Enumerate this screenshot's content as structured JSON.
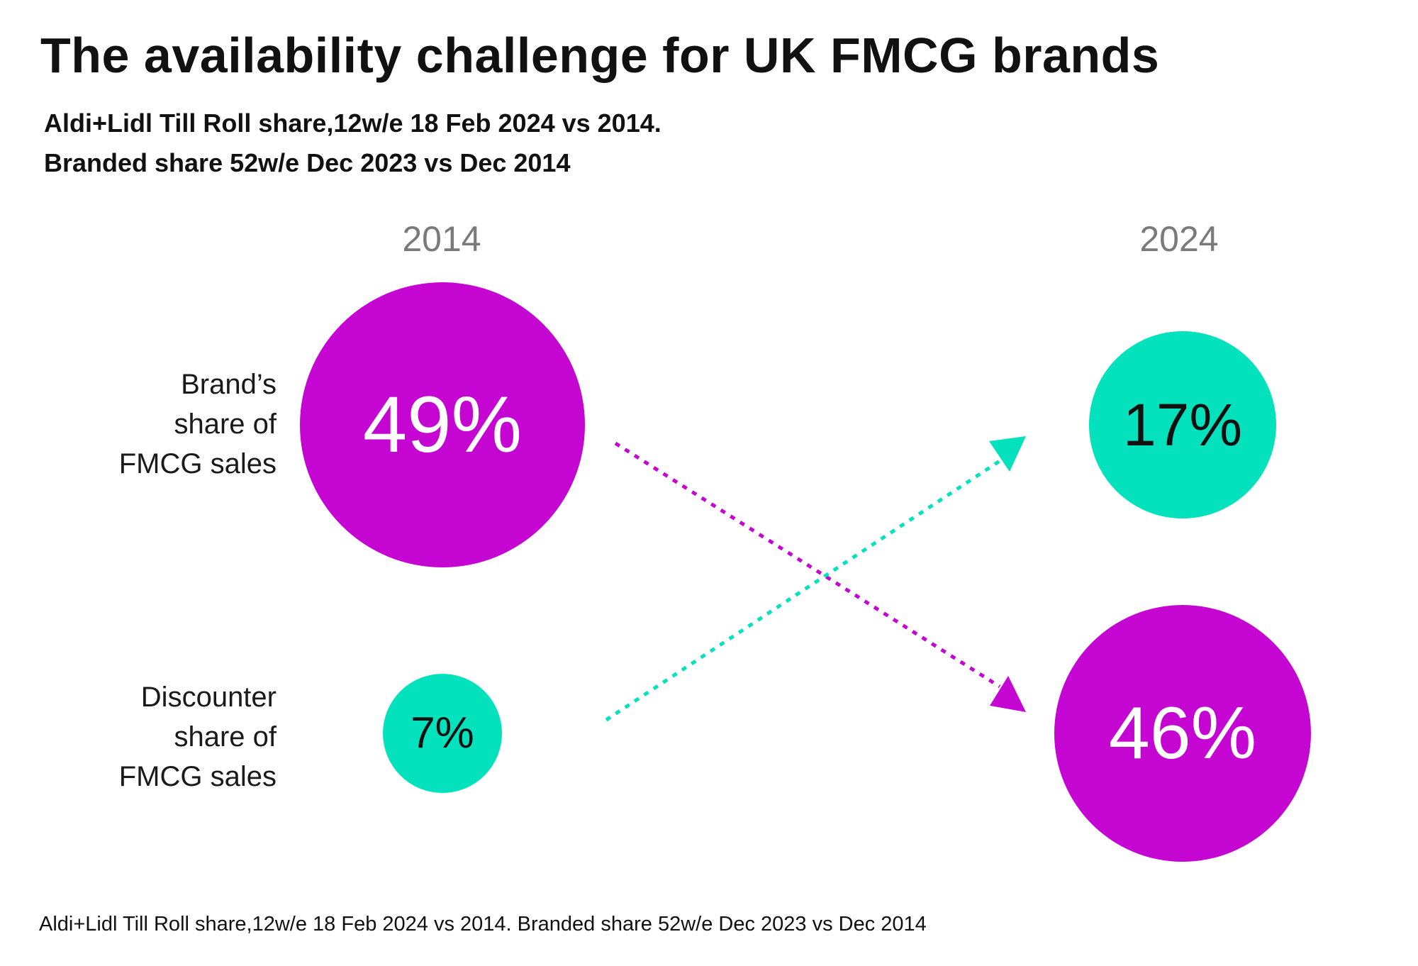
{
  "chart_data": {
    "type": "bubble-comparison",
    "title": "The availability challenge for UK FMCG brands",
    "subtitle_lines": [
      "Aldi+Lidl Till Roll share,12w/e 18 Feb 2024 vs 2014.",
      "Branded share 52w/e Dec 2023 vs Dec 2014"
    ],
    "columns": [
      "2014",
      "2024"
    ],
    "rows": [
      {
        "label_lines": [
          "Brand’s",
          "share of",
          "FMCG sales"
        ],
        "values": [
          "49%",
          "46%"
        ]
      },
      {
        "label_lines": [
          "Discounter",
          "share of",
          "FMCG sales"
        ],
        "values": [
          "7%",
          "17%"
        ]
      }
    ],
    "series": [
      {
        "name": "Brand’s share of FMCG sales",
        "x": [
          "2014",
          "2024"
        ],
        "y": [
          49,
          46
        ],
        "color": "#c505d2",
        "text_color": "#ffffff"
      },
      {
        "name": "Discounter share of FMCG sales",
        "x": [
          "2014",
          "2024"
        ],
        "y": [
          7,
          17
        ],
        "color": "#03e2bc",
        "text_color": "#111111"
      }
    ],
    "footnote": "Aldi+Lidl Till Roll share,12w/e 18 Feb 2024 vs 2014. Branded share 52w/e Dec 2023 vs Dec 2014"
  },
  "colors": {
    "brand": "#c505d2",
    "discounter": "#03e2bc",
    "year_label": "#7a7a7a"
  }
}
